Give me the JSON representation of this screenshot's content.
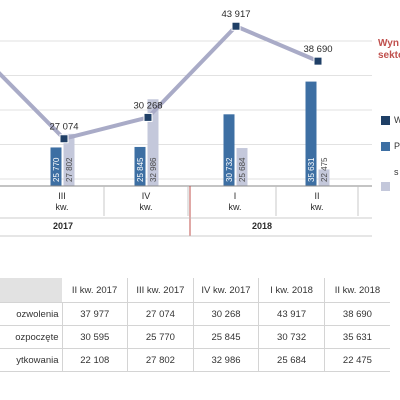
{
  "side_title_lines": [
    "Wyn",
    "sekto"
  ],
  "legend": [
    {
      "label": "W",
      "color": "#1f3f66"
    },
    {
      "label": "P",
      "color": "#3d6fa3"
    },
    {
      "label": "s",
      "color": "#c4c8db"
    }
  ],
  "chart_data": {
    "type": "bar",
    "categories": [
      {
        "label": [
          "III",
          "kw."
        ]
      },
      {
        "label": [
          "IV",
          "kw."
        ]
      },
      {
        "label": [
          "I",
          "kw."
        ]
      },
      {
        "label": [
          "II",
          "kw."
        ]
      }
    ],
    "years": [
      {
        "label": "2017"
      },
      {
        "label": "2018"
      }
    ],
    "series": [
      {
        "values": [
          25770,
          25845,
          30732,
          35631
        ],
        "color": "#3d6fa3"
      },
      {
        "values": [
          27802,
          32986,
          25684,
          22475
        ],
        "color": "#c4c8db"
      }
    ],
    "line": {
      "color": "#a9abc7",
      "marker_color": "#1f3f66",
      "points": [
        {
          "value": 37977
        },
        {
          "value": 27074,
          "label": "27 074"
        },
        {
          "value": 30268,
          "label": "30 268"
        },
        {
          "value": 43917,
          "label": "43 917"
        },
        {
          "value": 38690,
          "label": "38 690"
        }
      ]
    },
    "bar_value_labels": [
      [
        "25 770",
        "27 802"
      ],
      [
        "25 845",
        "32 986"
      ],
      [
        "30 732",
        "25 684"
      ],
      [
        "35 631",
        "22 475"
      ]
    ],
    "grid": true
  },
  "table": {
    "headers": [
      "",
      "II kw. 2017",
      "III kw. 2017",
      "IV kw. 2017",
      "I kw. 2018",
      "II kw. 2018"
    ],
    "rows": [
      {
        "label": "ozwolenia",
        "values": [
          "37 977",
          "27 074",
          "30 268",
          "43 917",
          "38 690"
        ]
      },
      {
        "label": "ozpoczęte",
        "values": [
          "30 595",
          "25 770",
          "25 845",
          "30 732",
          "35 631"
        ]
      },
      {
        "label": "ytkowania",
        "values": [
          "22 108",
          "27 802",
          "32 986",
          "25 684",
          "22 475"
        ]
      }
    ]
  }
}
